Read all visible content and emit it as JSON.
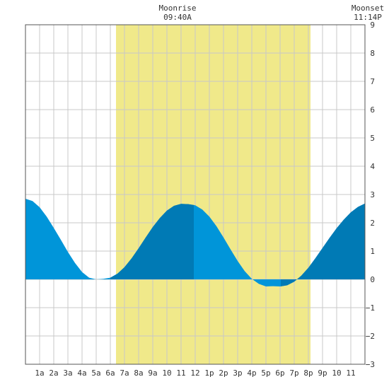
{
  "header": {
    "moonrise_label": "Moonrise",
    "moonrise_time": "09:40A",
    "moonset_label": "Moonset",
    "moonset_time": "11:14P"
  },
  "colors": {
    "daylight": "#f0e98a",
    "tide_fill": "#0095d9",
    "tide_fill_dark": "#007ab5",
    "grid": "#c8c8c8",
    "frame": "#555555"
  },
  "chart_data": {
    "type": "area",
    "title": "",
    "xlabel": "",
    "ylabel": "",
    "xlim": [
      0,
      24
    ],
    "ylim": [
      -3,
      9
    ],
    "x_tick_labels": [
      "1a",
      "2a",
      "3a",
      "4a",
      "5a",
      "6a",
      "7a",
      "8a",
      "9a",
      "10",
      "11",
      "12",
      "1p",
      "2p",
      "3p",
      "4p",
      "5p",
      "6p",
      "7p",
      "8p",
      "9p",
      "10",
      "11"
    ],
    "y_ticks": [
      -3,
      -2,
      -1,
      0,
      1,
      2,
      3,
      4,
      5,
      6,
      7,
      8,
      9
    ],
    "daylight_hours": [
      6.4,
      20.15
    ],
    "dark_fill_hours": [
      [
        6.0,
        11.9
      ],
      [
        18.05,
        24.0
      ]
    ],
    "tide_series": {
      "name": "",
      "hours": [
        0,
        0.5,
        1,
        1.5,
        2,
        2.5,
        3,
        3.5,
        4,
        4.5,
        5,
        5.5,
        6,
        6.5,
        7,
        7.5,
        8,
        8.5,
        9,
        9.5,
        10,
        10.5,
        11,
        11.5,
        12,
        12.5,
        13,
        13.5,
        14,
        14.5,
        15,
        15.5,
        16,
        16.5,
        17,
        17.5,
        18,
        18.5,
        19,
        19.5,
        20,
        20.5,
        21,
        21.5,
        22,
        22.5,
        23,
        23.5,
        24
      ],
      "values": [
        2.85,
        2.77,
        2.55,
        2.22,
        1.82,
        1.4,
        0.97,
        0.58,
        0.26,
        0.06,
        0.0,
        0.02,
        0.06,
        0.2,
        0.43,
        0.74,
        1.1,
        1.48,
        1.85,
        2.17,
        2.43,
        2.6,
        2.67,
        2.66,
        2.62,
        2.47,
        2.22,
        1.88,
        1.48,
        1.06,
        0.65,
        0.29,
        0.02,
        -0.16,
        -0.25,
        -0.24,
        -0.25,
        -0.21,
        -0.08,
        0.13,
        0.41,
        0.75,
        1.11,
        1.47,
        1.81,
        2.11,
        2.37,
        2.56,
        2.68
      ]
    }
  }
}
